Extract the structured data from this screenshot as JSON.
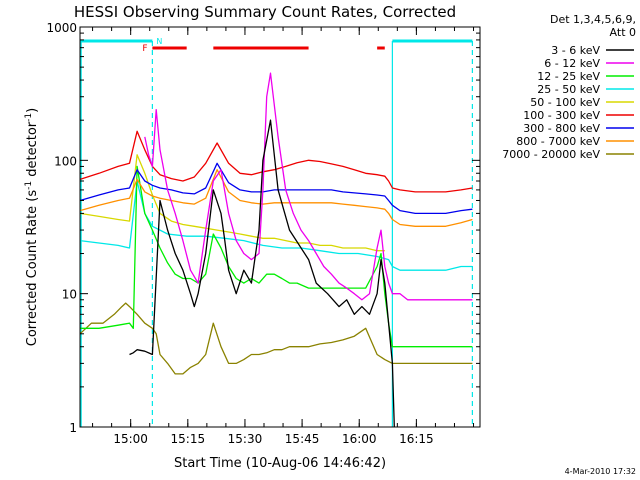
{
  "chart_data": {
    "type": "line",
    "title": "HESSI Observing Summary Count Rates, Corrected",
    "xlabel": "Start Time (10-Aug-06 14:46:42)",
    "ylabel_main": "Corrected Count Rate (s",
    "ylabel_sup1": "-1",
    "ylabel_mid": " detector",
    "ylabel_sup2": "-1",
    "ylabel_end": ")",
    "y_scale": "log",
    "ylim": [
      1,
      1000
    ],
    "xlim_minutes": [
      0,
      105
    ],
    "x_ticks": [
      {
        "m": 13.3,
        "label": "15:00"
      },
      {
        "m": 28.3,
        "label": "15:15"
      },
      {
        "m": 43.3,
        "label": "15:30"
      },
      {
        "m": 58.3,
        "label": "15:45"
      },
      {
        "m": 73.3,
        "label": "16:00"
      },
      {
        "m": 88.3,
        "label": "16:15"
      }
    ],
    "y_ticks": [
      {
        "v": 1,
        "label": "1"
      },
      {
        "v": 10,
        "label": "10"
      },
      {
        "v": 100,
        "label": "100"
      },
      {
        "v": 1000,
        "label": "1000"
      }
    ],
    "legend_title_1": "Det 1,3,4,5,6,9,",
    "legend_title_2": "Att 0",
    "legend_position": "right",
    "timestamp": "4-Mar-2010 17:32",
    "flags": {
      "F_label": "F",
      "N_label": "N",
      "F_color": "#ee0000",
      "N_color": "#00e8e8",
      "cyan_bars": [
        [
          0,
          19
        ],
        [
          82,
          103
        ]
      ],
      "red_bars": [
        [
          19,
          28
        ],
        [
          35,
          60
        ],
        [
          78,
          80
        ]
      ],
      "dashed_lines": [
        19,
        103
      ],
      "solid_cyan_lines": [
        82
      ]
    },
    "series": [
      {
        "name": "3 - 6 keV",
        "color": "#000000",
        "x": [
          0,
          5,
          10,
          13,
          14,
          15,
          17,
          19,
          21,
          23,
          25,
          27,
          29,
          30,
          31,
          33,
          35,
          37,
          38,
          39,
          41,
          43,
          45,
          47,
          48,
          50,
          52,
          55,
          60,
          62,
          65,
          68,
          70,
          72,
          74,
          76,
          78,
          79,
          80,
          81,
          82,
          82.5
        ],
        "values": [
          null,
          null,
          null,
          3.5,
          3.6,
          3.8,
          3.7,
          3.5,
          50,
          30,
          20,
          15,
          10,
          8,
          10,
          20,
          60,
          40,
          25,
          15,
          10,
          15,
          12,
          30,
          100,
          200,
          60,
          30,
          18,
          12,
          10,
          8,
          9,
          7,
          8,
          7,
          10,
          18,
          12,
          6,
          3,
          1
        ]
      },
      {
        "name": "6 - 12 keV",
        "color": "#ee00ee",
        "x": [
          17,
          18,
          19,
          20,
          21,
          23,
          25,
          27,
          29,
          31,
          33,
          35,
          37,
          39,
          41,
          43,
          45,
          47,
          48,
          49,
          50,
          52,
          54,
          56,
          58,
          60,
          62,
          64,
          66,
          68,
          70,
          72,
          74,
          76,
          78,
          79,
          80,
          81,
          82,
          84,
          86,
          88,
          90,
          92,
          94,
          96,
          98,
          100,
          103
        ],
        "values": [
          150,
          110,
          90,
          240,
          120,
          60,
          40,
          25,
          15,
          12,
          30,
          70,
          85,
          40,
          25,
          20,
          18,
          20,
          60,
          300,
          450,
          150,
          60,
          40,
          30,
          25,
          20,
          16,
          14,
          12,
          11,
          10,
          9,
          10,
          22,
          30,
          16,
          12,
          10,
          10,
          9,
          9,
          9,
          9,
          9,
          9,
          9,
          9,
          9
        ]
      },
      {
        "name": "12 - 25 keV",
        "color": "#00ee00",
        "x": [
          0,
          5,
          10,
          13,
          14,
          15,
          17,
          19,
          21,
          23,
          25,
          27,
          29,
          31,
          33,
          35,
          37,
          39,
          41,
          43,
          45,
          47,
          49,
          51,
          53,
          55,
          57,
          60,
          63,
          66,
          69,
          72,
          75,
          78,
          79,
          80,
          81,
          82,
          84,
          88,
          92,
          96,
          100,
          103
        ],
        "values": [
          5.5,
          5.5,
          5.8,
          6.0,
          5.5,
          90,
          40,
          30,
          22,
          17,
          14,
          13,
          13,
          12,
          14,
          28,
          22,
          16,
          13,
          12,
          13,
          12,
          14,
          14,
          13,
          12,
          12,
          11,
          11,
          11,
          11,
          11,
          11,
          16,
          20,
          10,
          6,
          4,
          4,
          4,
          4,
          4,
          4,
          4
        ]
      },
      {
        "name": "25 - 50 keV",
        "color": "#00e8e8",
        "x": [
          0,
          5,
          10,
          13,
          15,
          17,
          19,
          23,
          28,
          33,
          38,
          43,
          48,
          53,
          58,
          63,
          68,
          73,
          78,
          81,
          82,
          84,
          88,
          92,
          96,
          100,
          103
        ],
        "values": [
          25,
          24,
          23,
          22,
          70,
          40,
          32,
          28,
          27,
          27,
          26,
          25,
          23,
          22,
          22,
          21,
          20,
          20,
          19,
          18,
          16,
          15,
          15,
          15,
          15,
          16,
          16
        ]
      },
      {
        "name": "50 - 100 keV",
        "color": "#d8d800",
        "x": [
          0,
          5,
          10,
          13,
          15,
          17,
          19,
          21,
          24,
          27,
          30,
          33,
          36,
          39,
          42,
          45,
          48,
          51,
          54,
          57,
          60,
          63,
          66,
          69,
          72,
          75,
          78,
          80
        ],
        "values": [
          40,
          38,
          36,
          35,
          110,
          80,
          55,
          40,
          35,
          33,
          32,
          31,
          30,
          29,
          28,
          27,
          26,
          26,
          25,
          24,
          24,
          23,
          23,
          22,
          22,
          22,
          21,
          21
        ]
      },
      {
        "name": "100 - 300 keV",
        "color": "#ee0000",
        "x": [
          0,
          5,
          10,
          13,
          15,
          17,
          19,
          21,
          24,
          27,
          30,
          33,
          36,
          39,
          42,
          45,
          48,
          51,
          54,
          57,
          60,
          63,
          66,
          69,
          72,
          75,
          78,
          80,
          81,
          82,
          84,
          88,
          92,
          96,
          100,
          103
        ],
        "values": [
          72,
          80,
          90,
          95,
          165,
          120,
          90,
          78,
          73,
          70,
          75,
          95,
          135,
          95,
          80,
          78,
          82,
          85,
          90,
          96,
          100,
          98,
          94,
          90,
          85,
          80,
          78,
          76,
          70,
          62,
          60,
          58,
          58,
          58,
          60,
          62
        ]
      },
      {
        "name": "300 - 800 keV",
        "color": "#0000ee",
        "x": [
          0,
          5,
          10,
          13,
          15,
          17,
          19,
          21,
          24,
          27,
          30,
          33,
          36,
          39,
          42,
          45,
          48,
          51,
          54,
          57,
          60,
          63,
          66,
          69,
          72,
          75,
          78,
          80,
          81,
          82,
          84,
          88,
          92,
          96,
          100,
          103
        ],
        "values": [
          50,
          55,
          60,
          62,
          85,
          70,
          65,
          62,
          60,
          57,
          56,
          62,
          95,
          68,
          60,
          58,
          58,
          60,
          60,
          60,
          60,
          60,
          60,
          58,
          57,
          56,
          55,
          54,
          50,
          46,
          42,
          40,
          40,
          40,
          42,
          43
        ]
      },
      {
        "name": "800 - 7000 keV",
        "color": "#ff9000",
        "x": [
          0,
          5,
          10,
          13,
          15,
          17,
          19,
          21,
          24,
          27,
          30,
          33,
          36,
          39,
          42,
          45,
          48,
          51,
          54,
          57,
          60,
          63,
          66,
          69,
          72,
          75,
          78,
          80,
          81,
          82,
          84,
          88,
          92,
          96,
          100,
          103
        ],
        "values": [
          42,
          46,
          50,
          52,
          72,
          58,
          54,
          52,
          50,
          48,
          47,
          52,
          85,
          58,
          50,
          48,
          47,
          48,
          48,
          48,
          48,
          48,
          48,
          47,
          46,
          45,
          44,
          43,
          40,
          36,
          33,
          32,
          32,
          32,
          34,
          36
        ]
      },
      {
        "name": "7000 - 20000 keV",
        "color": "#8a8200",
        "x": [
          0,
          3,
          6,
          9,
          11,
          12,
          13,
          15,
          17,
          19,
          20,
          21,
          23,
          25,
          27,
          29,
          31,
          33,
          35,
          37,
          39,
          41,
          43,
          45,
          47,
          49,
          51,
          53,
          55,
          57,
          60,
          63,
          66,
          69,
          72,
          75,
          78,
          80,
          82,
          84,
          88,
          92,
          96,
          100,
          103
        ],
        "values": [
          5,
          6,
          6,
          7,
          8,
          8.5,
          8,
          7,
          6,
          5.5,
          5,
          3.5,
          3,
          2.5,
          2.5,
          2.8,
          3.0,
          3.5,
          6,
          4,
          3,
          3,
          3.2,
          3.5,
          3.5,
          3.6,
          3.8,
          3.8,
          4,
          4,
          4,
          4.2,
          4.3,
          4.5,
          4.8,
          5.5,
          3.5,
          3.2,
          3,
          3,
          3,
          3,
          3,
          3,
          3
        ]
      }
    ]
  }
}
